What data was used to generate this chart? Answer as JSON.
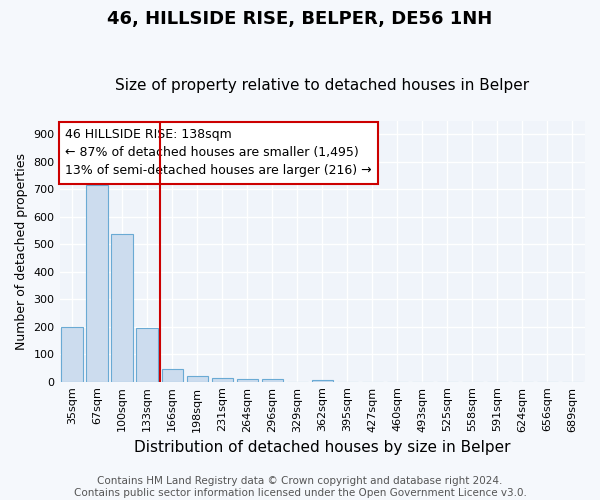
{
  "title": "46, HILLSIDE RISE, BELPER, DE56 1NH",
  "subtitle": "Size of property relative to detached houses in Belper",
  "xlabel": "Distribution of detached houses by size in Belper",
  "ylabel": "Number of detached properties",
  "categories": [
    "35sqm",
    "67sqm",
    "100sqm",
    "133sqm",
    "166sqm",
    "198sqm",
    "231sqm",
    "264sqm",
    "296sqm",
    "329sqm",
    "362sqm",
    "395sqm",
    "427sqm",
    "460sqm",
    "493sqm",
    "525sqm",
    "558sqm",
    "591sqm",
    "624sqm",
    "656sqm",
    "689sqm"
  ],
  "values": [
    200,
    715,
    538,
    195,
    46,
    20,
    13,
    10,
    10,
    0,
    7,
    0,
    0,
    0,
    0,
    0,
    0,
    0,
    0,
    0,
    0
  ],
  "bar_color": "#ccdcee",
  "bar_edge_color": "#6aaad4",
  "vline_x": 3.5,
  "vline_color": "#cc0000",
  "annotation_text": "46 HILLSIDE RISE: 138sqm\n← 87% of detached houses are smaller (1,495)\n13% of semi-detached houses are larger (216) →",
  "annotation_box_facecolor": "#ffffff",
  "annotation_box_edgecolor": "#cc0000",
  "ylim": [
    0,
    950
  ],
  "yticks": [
    0,
    100,
    200,
    300,
    400,
    500,
    600,
    700,
    800,
    900
  ],
  "footer": "Contains HM Land Registry data © Crown copyright and database right 2024.\nContains public sector information licensed under the Open Government Licence v3.0.",
  "bg_color": "#f5f8fc",
  "plot_bg_color": "#f0f4fa",
  "title_fontsize": 13,
  "subtitle_fontsize": 11,
  "xlabel_fontsize": 11,
  "ylabel_fontsize": 9,
  "tick_fontsize": 8,
  "footer_fontsize": 7.5,
  "ann_fontsize": 9
}
